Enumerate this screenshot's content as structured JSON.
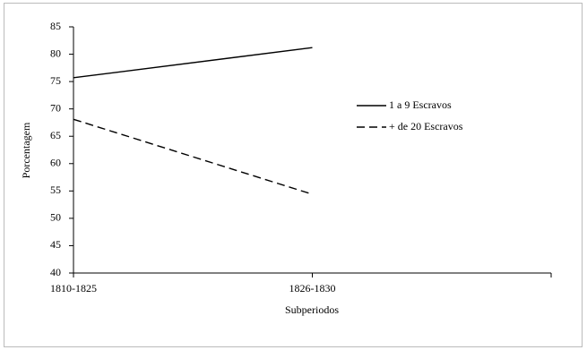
{
  "chart_data": {
    "type": "line",
    "x_label": "Subperiodos",
    "y_label": "Porcentagem",
    "categories": [
      "1810-1825",
      "1826-1830",
      null
    ],
    "series": [
      {
        "name": "1 a 9 Escravos",
        "color": "#000000",
        "style": "solid",
        "values": [
          75.7,
          81.2,
          null
        ]
      },
      {
        "name": "+ de 20 Escravos",
        "color": "#000000",
        "style": "dashed",
        "values": [
          68.1,
          54.4,
          null
        ]
      }
    ],
    "ylim": [
      40,
      85
    ],
    "yticks": [
      40,
      45,
      50,
      55,
      60,
      65,
      70,
      75,
      80,
      85
    ],
    "grid": false,
    "legend": "right"
  }
}
